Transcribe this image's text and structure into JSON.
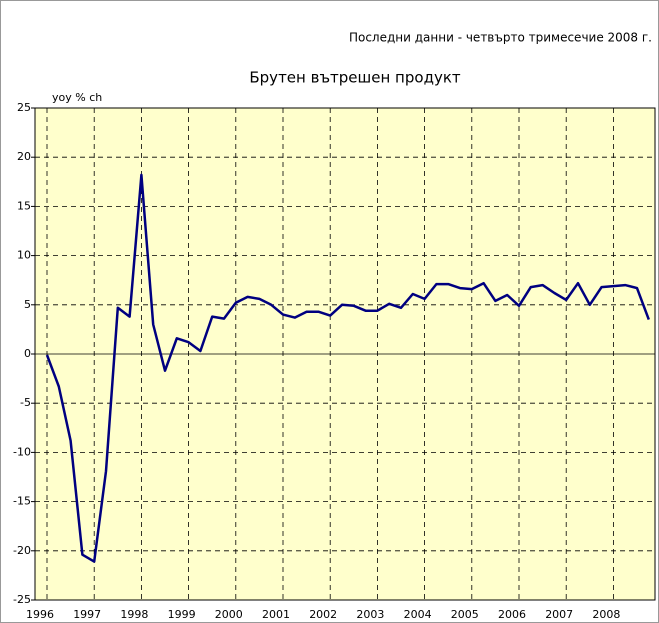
{
  "chart_data": {
    "type": "line",
    "title": "Брутен вътрешен продукт",
    "note": "Последни данни - четвърто тримесечие 2008 г.",
    "y_label": "yoy % ch",
    "categories": [
      "1996",
      null,
      null,
      null,
      "1997",
      null,
      null,
      null,
      "1998",
      null,
      null,
      null,
      "1999",
      null,
      null,
      null,
      "2000",
      null,
      null,
      null,
      "2001",
      null,
      null,
      null,
      "2002",
      null,
      null,
      null,
      "2003",
      null,
      null,
      null,
      "2004",
      null,
      null,
      null,
      "2005",
      null,
      null,
      null,
      "2006",
      null,
      null,
      null,
      "2007",
      null,
      null,
      null,
      "2008",
      null,
      null,
      null
    ],
    "series": [
      {
        "name": "yoy % ch",
        "color": "#000080",
        "values": [
          -0.1,
          -3.3,
          -8.8,
          -20.4,
          -21.1,
          -11.9,
          4.7,
          3.8,
          18.2,
          3.0,
          -1.7,
          1.6,
          1.2,
          0.3,
          3.8,
          3.6,
          5.2,
          5.8,
          5.6,
          5.0,
          4.0,
          3.7,
          4.3,
          4.3,
          3.9,
          5.0,
          4.9,
          4.4,
          4.4,
          5.1,
          4.7,
          6.1,
          5.6,
          7.1,
          7.1,
          6.7,
          6.6,
          7.2,
          5.4,
          6.0,
          4.9,
          6.8,
          7.0,
          6.2,
          5.5,
          7.2,
          5.0,
          6.8,
          6.9,
          7.0,
          6.7,
          3.5
        ]
      }
    ],
    "ylim": [
      -25,
      25
    ],
    "yticks": [
      -25,
      -20,
      -15,
      -10,
      -5,
      0,
      5,
      10,
      15,
      20,
      25
    ],
    "grid": true,
    "background": "#ffffcc"
  }
}
